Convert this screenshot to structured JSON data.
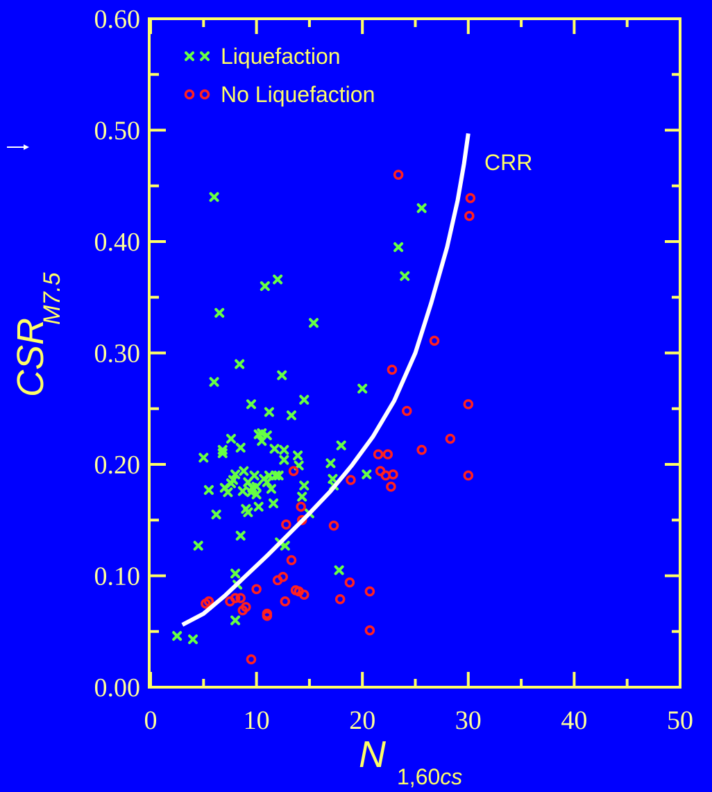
{
  "chart_data": {
    "type": "scatter",
    "xlabel_main": "N",
    "xlabel_sub": "1,60cs",
    "ylabel_main": "CSR",
    "ylabel_sub": "M7.5",
    "xlim": [
      0,
      50
    ],
    "ylim": [
      0,
      0.6
    ],
    "x_ticks": [
      "0",
      "10",
      "20",
      "30",
      "40",
      "50"
    ],
    "y_ticks": [
      "0.00",
      "0.10",
      "0.20",
      "0.30",
      "0.40",
      "0.50",
      "0.60"
    ],
    "legend_position": "top-left",
    "colors": {
      "background": "#0000ff",
      "frame": "#ffff66",
      "tick_label": "#ffff99",
      "liquefaction": "#66ff44",
      "no_liquefaction": "#ff2020",
      "curve": "#ffffff"
    },
    "series": [
      {
        "name": "Liquefaction",
        "marker": "x",
        "points": [
          [
            2.5,
            0.046
          ],
          [
            4.0,
            0.043
          ],
          [
            4.5,
            0.127
          ],
          [
            5.0,
            0.206
          ],
          [
            5.5,
            0.177
          ],
          [
            6.0,
            0.44
          ],
          [
            6.0,
            0.274
          ],
          [
            6.2,
            0.155
          ],
          [
            6.5,
            0.336
          ],
          [
            6.8,
            0.21
          ],
          [
            6.8,
            0.213
          ],
          [
            7.0,
            0.179
          ],
          [
            7.3,
            0.175
          ],
          [
            7.6,
            0.223
          ],
          [
            7.6,
            0.183
          ],
          [
            7.8,
            0.186
          ],
          [
            8.0,
            0.191
          ],
          [
            8.0,
            0.102
          ],
          [
            8.0,
            0.06
          ],
          [
            8.2,
            0.092
          ],
          [
            8.4,
            0.29
          ],
          [
            8.5,
            0.215
          ],
          [
            8.5,
            0.136
          ],
          [
            8.7,
            0.176
          ],
          [
            8.8,
            0.194
          ],
          [
            9.0,
            0.16
          ],
          [
            9.2,
            0.184
          ],
          [
            9.2,
            0.157
          ],
          [
            9.5,
            0.254
          ],
          [
            9.5,
            0.175
          ],
          [
            9.6,
            0.179
          ],
          [
            9.8,
            0.19
          ],
          [
            10.0,
            0.18
          ],
          [
            10.0,
            0.173
          ],
          [
            10.2,
            0.227
          ],
          [
            10.2,
            0.162
          ],
          [
            10.5,
            0.228
          ],
          [
            10.5,
            0.221
          ],
          [
            10.7,
            0.187
          ],
          [
            10.8,
            0.36
          ],
          [
            11.0,
            0.226
          ],
          [
            11.0,
            0.184
          ],
          [
            11.2,
            0.247
          ],
          [
            11.2,
            0.19
          ],
          [
            11.4,
            0.178
          ],
          [
            11.6,
            0.165
          ],
          [
            11.7,
            0.214
          ],
          [
            11.8,
            0.19
          ],
          [
            12.0,
            0.366
          ],
          [
            12.1,
            0.19
          ],
          [
            12.2,
            0.13
          ],
          [
            12.4,
            0.28
          ],
          [
            12.6,
            0.213
          ],
          [
            12.6,
            0.204
          ],
          [
            12.7,
            0.127
          ],
          [
            13.3,
            0.244
          ],
          [
            13.9,
            0.208
          ],
          [
            14.0,
            0.199
          ],
          [
            14.3,
            0.171
          ],
          [
            14.5,
            0.181
          ],
          [
            14.5,
            0.258
          ],
          [
            15.0,
            0.156
          ],
          [
            15.4,
            0.327
          ],
          [
            17.0,
            0.201
          ],
          [
            17.2,
            0.187
          ],
          [
            17.3,
            0.181
          ],
          [
            17.8,
            0.105
          ],
          [
            18.0,
            0.217
          ],
          [
            20.0,
            0.268
          ],
          [
            20.4,
            0.191
          ],
          [
            23.4,
            0.395
          ],
          [
            24.0,
            0.369
          ],
          [
            25.6,
            0.43
          ]
        ]
      },
      {
        "name": "No Liquefaction",
        "marker": "o",
        "points": [
          [
            5.2,
            0.075
          ],
          [
            5.5,
            0.077
          ],
          [
            7.5,
            0.077
          ],
          [
            8.0,
            0.08
          ],
          [
            8.5,
            0.08
          ],
          [
            8.7,
            0.069
          ],
          [
            9.0,
            0.072
          ],
          [
            9.5,
            0.025
          ],
          [
            10.0,
            0.088
          ],
          [
            11.0,
            0.066
          ],
          [
            11.0,
            0.064
          ],
          [
            12.0,
            0.096
          ],
          [
            12.5,
            0.099
          ],
          [
            12.7,
            0.077
          ],
          [
            12.8,
            0.146
          ],
          [
            13.3,
            0.114
          ],
          [
            13.5,
            0.194
          ],
          [
            13.7,
            0.087
          ],
          [
            14.0,
            0.086
          ],
          [
            14.2,
            0.162
          ],
          [
            14.3,
            0.15
          ],
          [
            14.5,
            0.083
          ],
          [
            17.3,
            0.145
          ],
          [
            17.9,
            0.079
          ],
          [
            18.8,
            0.094
          ],
          [
            18.9,
            0.186
          ],
          [
            20.7,
            0.086
          ],
          [
            20.7,
            0.051
          ],
          [
            21.5,
            0.209
          ],
          [
            21.7,
            0.194
          ],
          [
            22.2,
            0.19
          ],
          [
            22.4,
            0.209
          ],
          [
            22.7,
            0.18
          ],
          [
            22.8,
            0.285
          ],
          [
            22.9,
            0.191
          ],
          [
            23.4,
            0.46
          ],
          [
            24.2,
            0.248
          ],
          [
            25.6,
            0.213
          ],
          [
            26.8,
            0.311
          ],
          [
            28.3,
            0.223
          ],
          [
            30.0,
            0.254
          ],
          [
            30.0,
            0.19
          ],
          [
            30.1,
            0.423
          ],
          [
            30.2,
            0.439
          ]
        ]
      }
    ],
    "curve": {
      "label": "CRR",
      "points": [
        [
          3.0,
          0.056
        ],
        [
          5.0,
          0.066
        ],
        [
          7.0,
          0.082
        ],
        [
          9.0,
          0.1
        ],
        [
          11.0,
          0.118
        ],
        [
          13.0,
          0.137
        ],
        [
          15.0,
          0.156
        ],
        [
          17.0,
          0.176
        ],
        [
          19.0,
          0.199
        ],
        [
          21.0,
          0.225
        ],
        [
          23.0,
          0.257
        ],
        [
          25.0,
          0.3
        ],
        [
          26.5,
          0.345
        ],
        [
          28.0,
          0.395
        ],
        [
          29.0,
          0.437
        ],
        [
          29.6,
          0.47
        ],
        [
          30.0,
          0.497
        ]
      ]
    }
  }
}
